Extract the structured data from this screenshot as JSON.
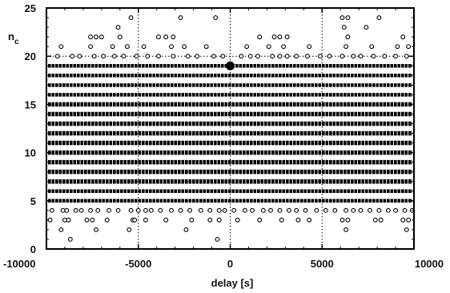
{
  "chart_data": {
    "type": "scatter",
    "title": "",
    "xlabel": "delay [s]",
    "ylabel_main": "n",
    "ylabel_sub": "c",
    "xlim": [
      -10000,
      10000
    ],
    "ylim": [
      0,
      25
    ],
    "x_ticks": [
      -10000,
      -5000,
      0,
      5000,
      10000
    ],
    "x_tick_labels": [
      "-10000",
      "-5000",
      "0",
      "5000",
      "10000"
    ],
    "y_ticks": [
      0,
      5,
      10,
      15,
      20,
      25
    ],
    "y_tick_labels": [
      "0",
      "5",
      "10",
      "15",
      "20",
      "25"
    ],
    "grid": "dotted at x = -5000, 0, 5000 and y = 20",
    "point_color": "#000000",
    "highlight_point": {
      "x": 0,
      "y": 19
    },
    "series": [
      {
        "values": [
          {
            "y": 0,
            "x": []
          },
          {
            "y": 1,
            "x": [
              -8700,
              -700
            ]
          },
          {
            "y": 2,
            "x": [
              -9200,
              -7300,
              -5500,
              -2400,
              6300,
              9600
            ]
          },
          {
            "y": 3,
            "x": [
              -9800,
              -9000,
              -8800,
              -7800,
              -7500,
              -6700,
              -5300,
              -5200,
              -4600,
              -3500,
              -2100,
              -1100,
              -600,
              400,
              1600,
              2800,
              3700,
              4300,
              6100,
              6400,
              7900,
              8200,
              9400,
              9700
            ]
          },
          {
            "y": 4,
            "x": [
              -9700,
              -9100,
              -8900,
              -8400,
              -8100,
              -7600,
              -7200,
              -6600,
              -6100,
              -5400,
              -5000,
              -4600,
              -4300,
              -3800,
              -3200,
              -2700,
              -2200,
              -1600,
              -1100,
              -600,
              -300,
              200,
              800,
              1200,
              1800,
              2200,
              2700,
              3200,
              3600,
              4100,
              4700,
              5200,
              5700,
              6300,
              6700,
              7100,
              7600,
              8100,
              8600,
              9000,
              9500,
              9900
            ]
          },
          {
            "y": 20,
            "x": [
              -9400,
              -8600,
              -8200,
              -7400,
              -6900,
              -6300,
              -5800,
              -5100,
              -4500,
              -3900,
              -3100,
              -2300,
              -1800,
              -900,
              -400,
              600,
              1100,
              1500,
              2300,
              2700,
              3100,
              3600,
              4200,
              4900,
              5400,
              6100,
              6700,
              7100,
              7800,
              8400,
              9000,
              9600
            ]
          },
          {
            "y": 21,
            "x": [
              -9200,
              -7600,
              -6400,
              -5600,
              -4700,
              -3200,
              -2500,
              -1300,
              900,
              2100,
              2900,
              4300,
              6300,
              7700,
              9100,
              9700
            ]
          },
          {
            "y": 22,
            "x": [
              -7600,
              -7300,
              -7000,
              -6000,
              -3900,
              -3500,
              -3100,
              1600,
              2400,
              2700,
              3100,
              6400,
              9400
            ]
          },
          {
            "y": 23,
            "x": [
              -6100,
              6200,
              7400
            ]
          },
          {
            "y": 24,
            "x": [
              -5400,
              -2700,
              -800,
              6100,
              6400,
              8100
            ]
          }
        ]
      }
    ],
    "dense_rows": [
      {
        "y": 5,
        "x_range": [
          -10000,
          10000
        ]
      },
      {
        "y": 6,
        "x_range": [
          -10000,
          10000
        ]
      },
      {
        "y": 7,
        "x_range": [
          -10000,
          10000
        ]
      },
      {
        "y": 8,
        "x_range": [
          -10000,
          10000
        ]
      },
      {
        "y": 9,
        "x_range": [
          -10000,
          10000
        ]
      },
      {
        "y": 10,
        "x_range": [
          -10000,
          10000
        ]
      },
      {
        "y": 11,
        "x_range": [
          -10000,
          10000
        ]
      },
      {
        "y": 12,
        "x_range": [
          -10000,
          10000
        ]
      },
      {
        "y": 13,
        "x_range": [
          -10000,
          10000
        ]
      },
      {
        "y": 14,
        "x_range": [
          -10000,
          10000
        ]
      },
      {
        "y": 15,
        "x_range": [
          -10000,
          10000
        ]
      },
      {
        "y": 16,
        "x_range": [
          -10000,
          10000
        ]
      },
      {
        "y": 17,
        "x_range": [
          -10000,
          10000
        ]
      },
      {
        "y": 18,
        "x_range": [
          -10000,
          10000
        ]
      },
      {
        "y": 19,
        "x_range": [
          -10000,
          10000
        ]
      }
    ]
  }
}
